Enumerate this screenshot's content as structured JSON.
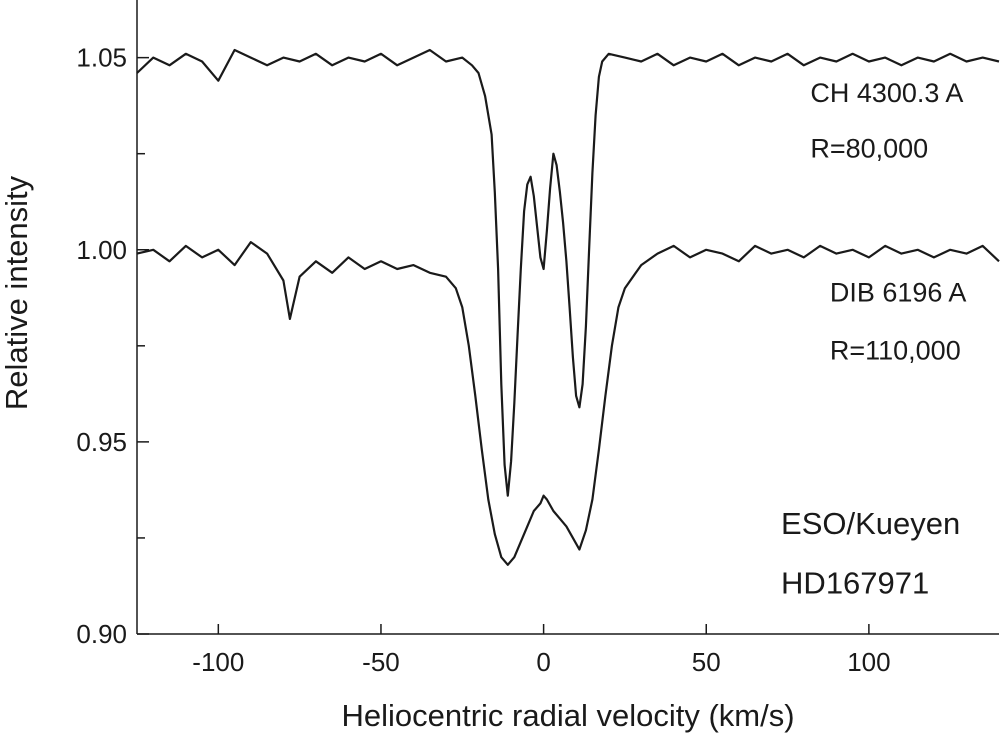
{
  "chart_data": {
    "type": "line",
    "title": "",
    "xlabel": "Heliocentric radial velocity (km/s)",
    "ylabel": "Relative intensity",
    "xlim": [
      -125,
      140
    ],
    "ylim": [
      0.9,
      1.065
    ],
    "x_ticks": [
      -100,
      -50,
      0,
      50,
      100
    ],
    "x_tick_labels": [
      "-100",
      "-50",
      "0",
      "50",
      "100"
    ],
    "y_ticks": [
      0.9,
      0.95,
      1.0,
      1.05
    ],
    "y_tick_labels": [
      "0.90",
      "0.95",
      "1.00",
      "1.05"
    ],
    "y_minor_ticks": [
      0.925,
      0.975,
      1.025
    ],
    "grid": false,
    "legend": "none",
    "line_color": "#1a1a1a",
    "series": [
      {
        "x": [
          -125,
          -120,
          -115,
          -110,
          -105,
          -100,
          -95,
          -90,
          -85,
          -80,
          -75,
          -70,
          -65,
          -60,
          -55,
          -50,
          -45,
          -40,
          -35,
          -30,
          -25,
          -22,
          -20,
          -18,
          -16,
          -15,
          -14,
          -13,
          -12,
          -11,
          -10,
          -9,
          -8,
          -7,
          -6,
          -5,
          -4,
          -3,
          -2,
          -1,
          0,
          1,
          2,
          3,
          4,
          5,
          6,
          7,
          8,
          9,
          10,
          11,
          12,
          13,
          14,
          15,
          16,
          17,
          18,
          20,
          25,
          30,
          35,
          40,
          45,
          50,
          55,
          60,
          65,
          70,
          75,
          80,
          85,
          90,
          95,
          100,
          105,
          110,
          115,
          120,
          125,
          130,
          135,
          140
        ],
        "y": [
          1.046,
          1.05,
          1.048,
          1.051,
          1.049,
          1.044,
          1.052,
          1.05,
          1.048,
          1.05,
          1.049,
          1.051,
          1.048,
          1.05,
          1.049,
          1.051,
          1.048,
          1.05,
          1.052,
          1.049,
          1.05,
          1.048,
          1.046,
          1.04,
          1.03,
          1.015,
          0.995,
          0.965,
          0.944,
          0.936,
          0.945,
          0.96,
          0.978,
          0.995,
          1.01,
          1.017,
          1.019,
          1.014,
          1.006,
          0.998,
          0.995,
          1.005,
          1.016,
          1.025,
          1.022,
          1.015,
          1.007,
          0.997,
          0.985,
          0.972,
          0.962,
          0.959,
          0.965,
          0.98,
          1,
          1.02,
          1.035,
          1.045,
          1.049,
          1.051,
          1.05,
          1.049,
          1.051,
          1.048,
          1.05,
          1.049,
          1.051,
          1.048,
          1.05,
          1.049,
          1.051,
          1.048,
          1.05,
          1.049,
          1.051,
          1.049,
          1.05,
          1.048,
          1.05,
          1.049,
          1.051,
          1.049,
          1.05,
          1.049
        ]
      },
      {
        "x": [
          -125,
          -120,
          -115,
          -110,
          -105,
          -100,
          -95,
          -90,
          -85,
          -80,
          -78,
          -75,
          -70,
          -65,
          -60,
          -55,
          -50,
          -45,
          -40,
          -35,
          -30,
          -27,
          -25,
          -23,
          -21,
          -19,
          -17,
          -15,
          -13,
          -11,
          -9,
          -7,
          -5,
          -3,
          -1,
          0,
          1,
          3,
          5,
          7,
          9,
          11,
          13,
          15,
          17,
          19,
          21,
          23,
          25,
          30,
          35,
          40,
          45,
          50,
          55,
          60,
          65,
          70,
          75,
          80,
          85,
          90,
          95,
          100,
          105,
          110,
          115,
          120,
          125,
          130,
          135,
          140
        ],
        "y": [
          0.999,
          1.0,
          0.997,
          1.001,
          0.998,
          1.0,
          0.996,
          1.002,
          0.999,
          0.992,
          0.982,
          0.993,
          0.997,
          0.994,
          0.998,
          0.995,
          0.997,
          0.995,
          0.996,
          0.994,
          0.993,
          0.99,
          0.985,
          0.975,
          0.962,
          0.948,
          0.935,
          0.926,
          0.92,
          0.918,
          0.92,
          0.924,
          0.928,
          0.932,
          0.934,
          0.936,
          0.935,
          0.932,
          0.93,
          0.928,
          0.925,
          0.922,
          0.927,
          0.935,
          0.948,
          0.962,
          0.975,
          0.985,
          0.99,
          0.996,
          0.999,
          1.001,
          0.998,
          1.0,
          0.999,
          0.997,
          1.001,
          0.999,
          1.0,
          0.998,
          1.001,
          0.999,
          1.0,
          0.998,
          1.001,
          0.999,
          1.0,
          0.998,
          1.0,
          0.999,
          1.001,
          0.997
        ]
      }
    ],
    "annotations": [
      {
        "id": "ch-label",
        "text": "CH 4300.3 A",
        "x": 82,
        "y": 1.0385
      },
      {
        "id": "ch-res",
        "text": "R=80,000",
        "x": 82,
        "y": 1.024
      },
      {
        "id": "dib-label",
        "text": "DIB 6196 A",
        "x": 88,
        "y": 0.9865
      },
      {
        "id": "dib-res",
        "text": "R=110,000",
        "x": 88,
        "y": 0.9715
      },
      {
        "id": "obs-label",
        "text": "ESO/Kueyen",
        "x": 73,
        "y": 0.926
      },
      {
        "id": "star-label",
        "text": "HD167971",
        "x": 73,
        "y": 0.9105
      }
    ]
  }
}
